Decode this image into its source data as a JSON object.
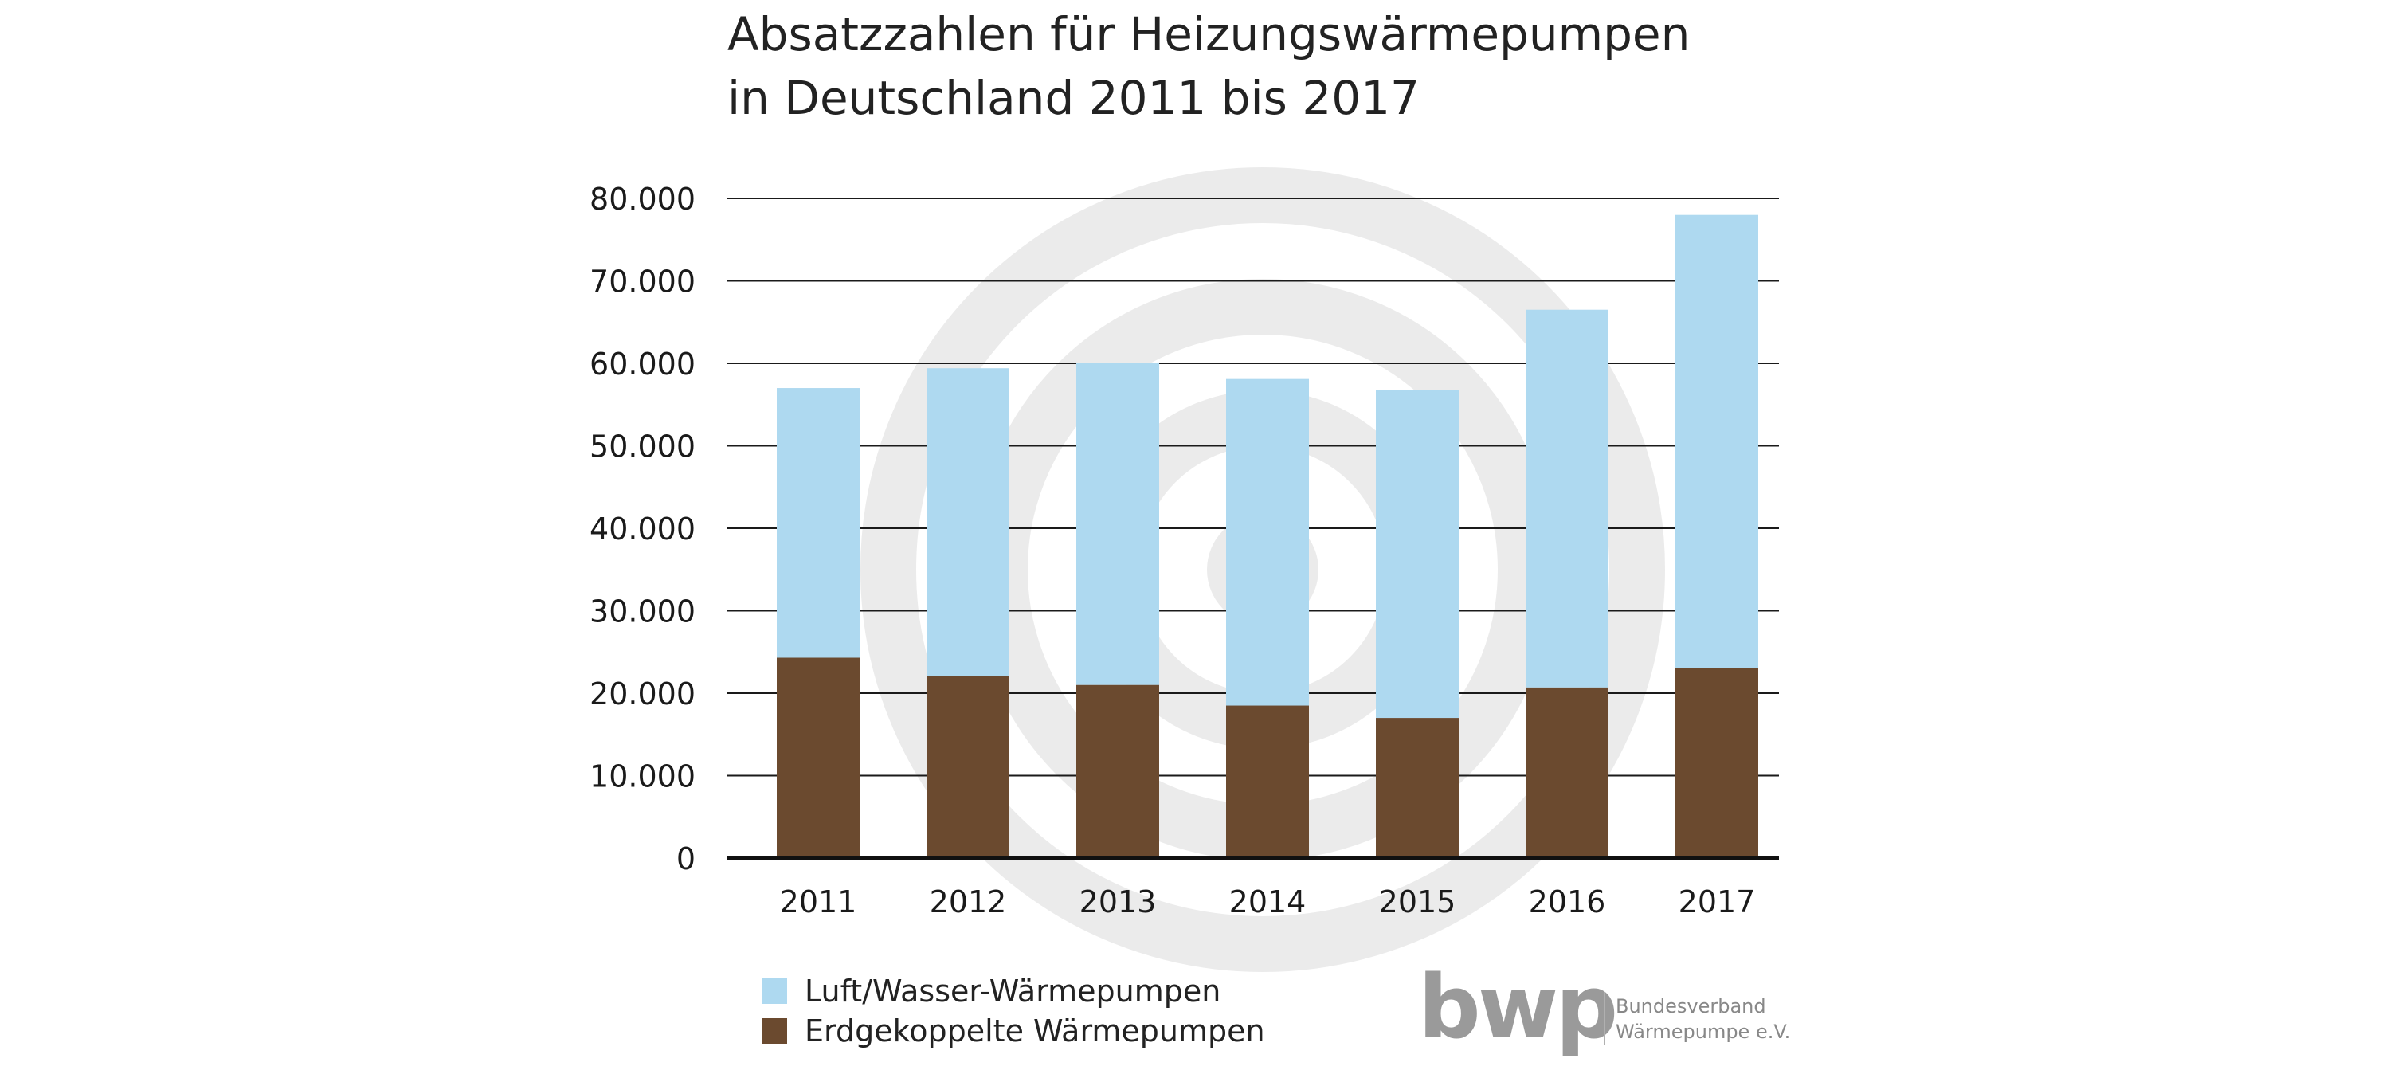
{
  "chart_data": {
    "type": "bar",
    "stacked": true,
    "title_lines": [
      "Absatzzahlen für Heizungswärmepumpen",
      "in Deutschland 2011 bis 2017"
    ],
    "categories": [
      "2011",
      "2012",
      "2013",
      "2014",
      "2015",
      "2016",
      "2017"
    ],
    "series": [
      {
        "name": "Erdgekoppelte Wärmepumpen",
        "color": "#6b4a2f",
        "values": [
          24300,
          22100,
          21000,
          18500,
          17000,
          20700,
          23000
        ]
      },
      {
        "name": "Luft/Wasser-Wärmepumpen",
        "color": "#aed9f0",
        "values": [
          32700,
          37300,
          39000,
          39600,
          39800,
          45800,
          55000
        ]
      }
    ],
    "legend_order": [
      "Luft/Wasser-Wärmepumpen",
      "Erdgekoppelte Wärmepumpen"
    ],
    "ylim": [
      0,
      80000
    ],
    "yticks": [
      0,
      10000,
      20000,
      30000,
      40000,
      50000,
      60000,
      70000,
      80000
    ],
    "ytick_labels": [
      "0",
      "10.000",
      "20.000",
      "30.000",
      "40.000",
      "50.000",
      "60.000",
      "70.000",
      "80.000"
    ],
    "grid": true,
    "legend_position": "bottom-left"
  },
  "logo": {
    "mark": "bwp",
    "line1": "Bundesverband",
    "line2": "Wärmepumpe e.V."
  },
  "colors": {
    "watermark": "#ebebeb",
    "grid": "#1a1a1a",
    "logo": "#9a9a9a"
  }
}
